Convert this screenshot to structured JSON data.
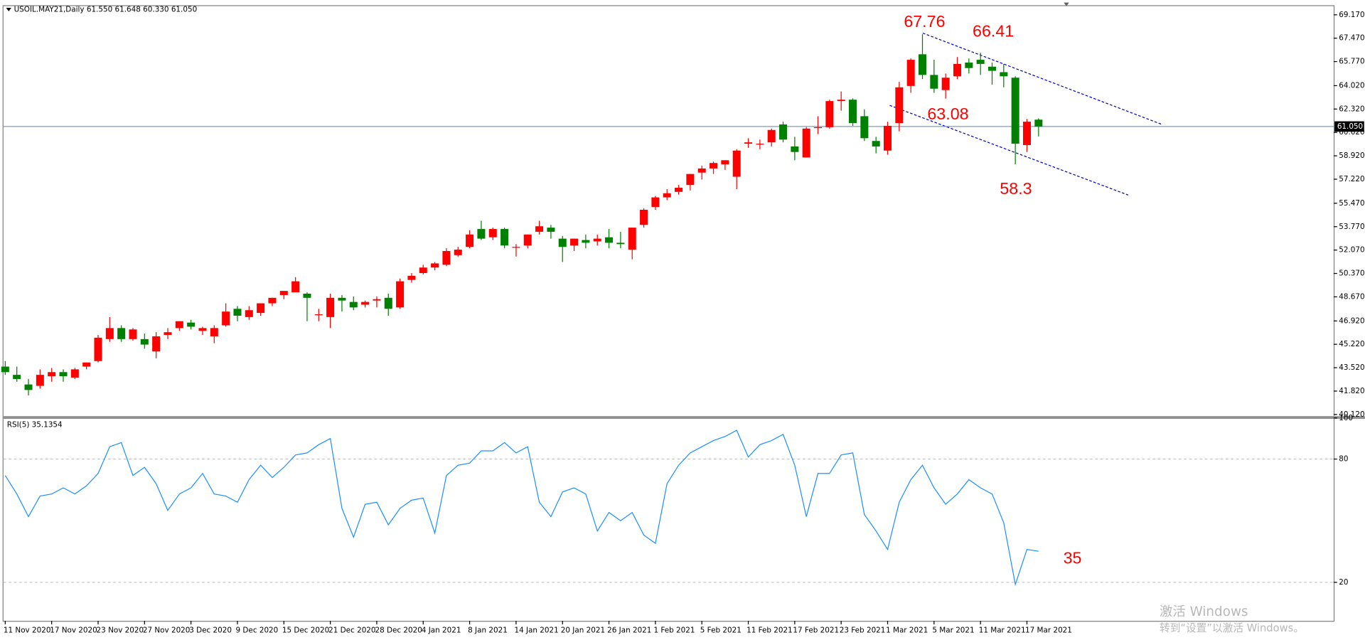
{
  "chart_data": [
    {
      "type": "candlestick",
      "title": "USOIL.MAY21,Daily 61.550 61.648 60.330 61.050",
      "categories": [
        "11 Nov 2020",
        null,
        null,
        null,
        "17 Nov 2020",
        null,
        null,
        null,
        "23 Nov 2020",
        null,
        null,
        null,
        "27 Nov 2020",
        null,
        null,
        null,
        "3 Dec 2020",
        null,
        null,
        null,
        "9 Dec 2020",
        null,
        null,
        null,
        "15 Dec 2020",
        null,
        null,
        null,
        "21 Dec 2020",
        null,
        null,
        null,
        "28 Dec 2020",
        null,
        null,
        null,
        "4 Jan 2021",
        null,
        null,
        null,
        "8 Jan 2021",
        null,
        null,
        null,
        "14 Jan 2021",
        null,
        null,
        null,
        "20 Jan 2021",
        null,
        null,
        null,
        "26 Jan 2021",
        null,
        null,
        null,
        "1 Feb 2021",
        null,
        null,
        null,
        "5 Feb 2021",
        null,
        null,
        null,
        "11 Feb 2021",
        null,
        null,
        null,
        "17 Feb 2021",
        null,
        null,
        null,
        "23 Feb 2021",
        null,
        null,
        null,
        "1 Mar 2021",
        null,
        null,
        null,
        "5 Mar 2021",
        null,
        null,
        null,
        "11 Mar 2021",
        null,
        null,
        null,
        "17 Mar 2021",
        null
      ],
      "open": [
        43.6,
        43.0,
        42.3,
        42.2,
        42.9,
        43.2,
        42.8,
        43.6,
        44.0,
        45.6,
        46.4,
        45.6,
        45.6,
        44.7,
        45.9,
        46.4,
        46.8,
        46.2,
        45.8,
        46.6,
        47.8,
        47.2,
        47.5,
        48.2,
        48.8,
        49.0,
        48.9,
        47.4,
        47.2,
        48.6,
        48.3,
        48.1,
        48.4,
        48.6,
        47.9,
        49.9,
        50.4,
        50.8,
        51.0,
        51.7,
        52.3,
        53.6,
        53.0,
        53.6,
        52.3,
        52.4,
        53.4,
        53.7,
        52.9,
        52.4,
        52.8,
        52.7,
        53.0,
        52.6,
        52.1,
        53.9,
        55.2,
        55.9,
        56.3,
        56.8,
        57.7,
        58.0,
        58.3,
        57.4,
        59.8,
        59.8,
        59.9,
        61.2,
        59.6,
        58.8,
        61.0,
        61.0,
        62.9,
        63.0,
        61.8,
        60.0,
        59.3,
        61.3,
        64.0,
        66.3,
        64.8,
        63.7,
        64.7,
        65.7,
        65.9,
        65.4,
        65.0,
        64.6,
        59.7,
        61.55
      ],
      "high": [
        44.0,
        43.6,
        42.7,
        43.4,
        43.5,
        43.4,
        43.5,
        43.9,
        45.9,
        47.2,
        46.6,
        46.4,
        46.0,
        46.1,
        46.4,
        46.9,
        47.0,
        46.5,
        46.6,
        48.2,
        48.0,
        48.0,
        48.2,
        48.6,
        49.1,
        50.1,
        49.0,
        47.8,
        48.9,
        48.8,
        48.7,
        48.4,
        48.7,
        48.9,
        50.0,
        50.4,
        51.0,
        51.2,
        52.2,
        52.3,
        53.5,
        54.2,
        53.7,
        53.7,
        52.5,
        53.2,
        54.2,
        53.9,
        53.1,
        52.9,
        53.2,
        53.2,
        53.6,
        53.4,
        53.7,
        55.1,
        56.0,
        56.5,
        56.8,
        57.6,
        58.2,
        58.5,
        58.6,
        59.4,
        60.2,
        60.1,
        60.9,
        61.4,
        60.3,
        61.0,
        61.8,
        63.0,
        63.6,
        63.1,
        62.3,
        60.3,
        61.4,
        64.3,
        66.0,
        67.76,
        65.9,
        64.9,
        66.1,
        66.0,
        66.41,
        65.7,
        65.6,
        64.7,
        61.6,
        61.648
      ],
      "low": [
        43.0,
        42.5,
        41.5,
        42.0,
        42.5,
        42.5,
        42.7,
        43.4,
        43.9,
        45.4,
        45.4,
        45.5,
        44.9,
        44.2,
        45.6,
        46.2,
        46.3,
        45.9,
        45.3,
        46.5,
        46.9,
        47.0,
        47.3,
        48.0,
        48.5,
        49.0,
        46.9,
        46.9,
        46.4,
        47.6,
        47.7,
        47.9,
        47.9,
        47.3,
        47.8,
        49.7,
        50.3,
        50.6,
        50.9,
        51.6,
        52.2,
        52.8,
        52.8,
        52.2,
        51.6,
        52.2,
        53.2,
        52.9,
        51.2,
        52.0,
        52.2,
        52.4,
        52.2,
        52.2,
        51.4,
        53.7,
        55.0,
        55.7,
        56.1,
        56.4,
        57.2,
        57.6,
        57.9,
        56.5,
        59.5,
        59.4,
        59.6,
        59.9,
        58.6,
        58.8,
        60.5,
        60.9,
        62.2,
        61.1,
        60.0,
        59.1,
        59.0,
        60.7,
        63.5,
        64.5,
        63.5,
        63.08,
        64.5,
        64.9,
        64.8,
        64.1,
        63.9,
        58.3,
        59.2,
        60.33
      ],
      "close": [
        43.2,
        42.7,
        41.9,
        43.0,
        43.2,
        42.9,
        43.4,
        43.9,
        45.7,
        46.4,
        45.6,
        46.3,
        45.2,
        45.8,
        46.1,
        46.9,
        46.5,
        46.4,
        46.4,
        47.6,
        47.3,
        47.7,
        48.2,
        48.6,
        49.1,
        49.8,
        48.6,
        47.4,
        48.6,
        48.4,
        47.9,
        48.3,
        48.5,
        47.8,
        49.8,
        50.2,
        50.8,
        51.1,
        52.0,
        52.1,
        53.2,
        52.9,
        53.6,
        52.4,
        52.3,
        53.2,
        53.8,
        53.4,
        52.3,
        52.9,
        52.6,
        52.9,
        52.6,
        52.5,
        53.7,
        55.0,
        55.9,
        56.2,
        56.6,
        57.6,
        58.0,
        58.4,
        58.6,
        59.3,
        59.9,
        59.8,
        60.8,
        60.1,
        59.2,
        60.9,
        61.0,
        62.9,
        63.0,
        61.3,
        60.2,
        59.6,
        61.1,
        63.9,
        65.9,
        64.8,
        63.8,
        64.6,
        65.6,
        65.3,
        65.6,
        65.1,
        64.7,
        59.8,
        61.4,
        61.05
      ],
      "up_color": "#ff0000",
      "down_color": "#008000",
      "ylim": [
        40.12,
        69.17
      ],
      "yticks": [
        {
          "value": 69.17,
          "label": "69.170"
        },
        {
          "value": 67.47,
          "label": "67.470"
        },
        {
          "value": 65.77,
          "label": "65.770"
        },
        {
          "value": 64.02,
          "label": "64.020"
        },
        {
          "value": 62.32,
          "label": "62.320"
        },
        {
          "value": 60.62,
          "label": "60.620"
        },
        {
          "value": 58.92,
          "label": "58.920"
        },
        {
          "value": 57.22,
          "label": "57.220"
        },
        {
          "value": 55.47,
          "label": "55.470"
        },
        {
          "value": 53.77,
          "label": "53.770"
        },
        {
          "value": 52.07,
          "label": "52.070"
        },
        {
          "value": 50.37,
          "label": "50.370"
        },
        {
          "value": 48.67,
          "label": "48.670"
        },
        {
          "value": 46.92,
          "label": "46.920"
        },
        {
          "value": 45.22,
          "label": "45.220"
        },
        {
          "value": 43.52,
          "label": "43.520"
        },
        {
          "value": 41.82,
          "label": "41.820"
        },
        {
          "value": 40.12,
          "label": "40.120"
        }
      ],
      "grid": false,
      "current_price": {
        "value": 61.05,
        "label": "61.050"
      },
      "annotations": [
        67.76,
        66.41,
        63.08,
        58.3
      ]
    },
    {
      "type": "line",
      "title": "RSI(5) 35.1354",
      "series": [
        {
          "name": "RSI(5)",
          "color": "#1e90ff",
          "values": [
            72,
            63,
            52,
            62,
            63,
            66,
            63,
            67,
            73,
            86,
            88,
            72,
            76,
            68,
            55,
            63,
            66,
            73,
            63,
            62,
            59,
            70,
            77,
            71,
            76,
            82,
            83,
            87,
            90,
            56,
            42,
            58,
            59,
            48,
            56,
            60,
            61,
            44,
            72,
            77,
            78,
            84,
            84,
            88,
            83,
            86,
            59,
            52,
            64,
            66,
            63,
            45,
            54,
            50,
            54,
            43,
            39,
            68,
            77,
            83,
            86,
            89,
            91,
            94,
            81,
            87,
            89,
            92,
            77,
            52,
            73,
            73,
            82,
            83,
            53,
            45,
            36,
            59,
            70,
            77,
            66,
            58,
            63,
            70,
            66,
            63,
            49,
            19,
            36,
            35.1354
          ]
        }
      ],
      "ylim": [
        0,
        100
      ],
      "yticks": [
        100,
        80,
        20
      ],
      "annotations": [
        35
      ]
    }
  ],
  "watermark": {
    "title": "激活 Windows",
    "text": "转到“设置”以激活 Windows。"
  }
}
